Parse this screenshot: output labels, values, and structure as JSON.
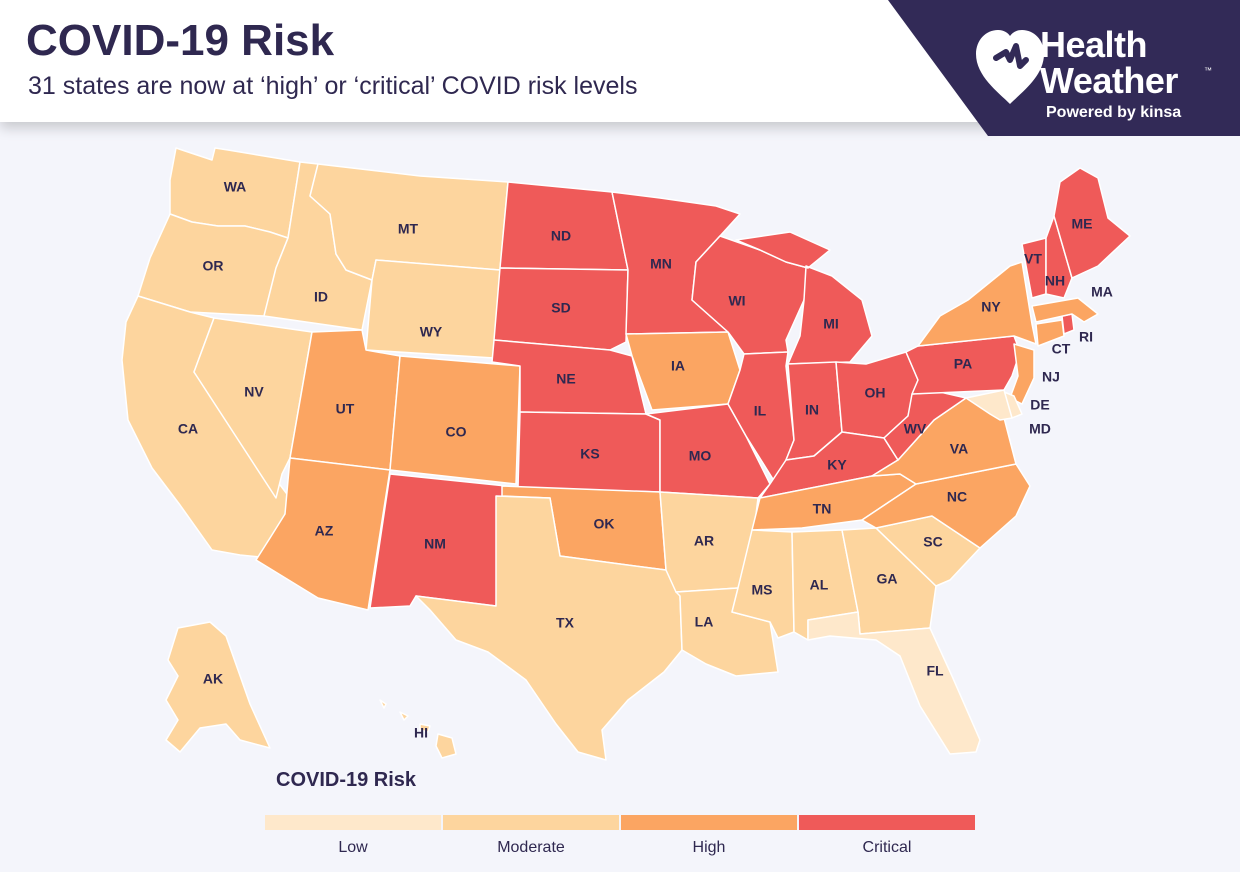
{
  "header": {
    "title": "COVID-19 Risk",
    "subtitle": "31 states are now at ‘high’ or ‘critical’ COVID risk levels"
  },
  "brand": {
    "name_line1": "Health",
    "name_line2": "Weather",
    "trademark": "™",
    "powered_by": "Powered by kinsa",
    "background_color": "#322a57",
    "icon": "heart-pin-icon"
  },
  "colors": {
    "Low": "#fee8cb",
    "Moderate": "#fdd59e",
    "High": "#fba562",
    "Critical": "#ef5a59"
  },
  "legend": {
    "title": "COVID-19 Risk",
    "levels": [
      "Low",
      "Moderate",
      "High",
      "Critical"
    ]
  },
  "states": [
    {
      "abbr": "WA",
      "risk": "Moderate"
    },
    {
      "abbr": "OR",
      "risk": "Moderate"
    },
    {
      "abbr": "CA",
      "risk": "Moderate"
    },
    {
      "abbr": "ID",
      "risk": "Moderate"
    },
    {
      "abbr": "NV",
      "risk": "Moderate"
    },
    {
      "abbr": "MT",
      "risk": "Moderate"
    },
    {
      "abbr": "WY",
      "risk": "Moderate"
    },
    {
      "abbr": "UT",
      "risk": "High"
    },
    {
      "abbr": "AZ",
      "risk": "High"
    },
    {
      "abbr": "CO",
      "risk": "High"
    },
    {
      "abbr": "NM",
      "risk": "Critical"
    },
    {
      "abbr": "ND",
      "risk": "Critical"
    },
    {
      "abbr": "SD",
      "risk": "Critical"
    },
    {
      "abbr": "NE",
      "risk": "Critical"
    },
    {
      "abbr": "KS",
      "risk": "Critical"
    },
    {
      "abbr": "OK",
      "risk": "High"
    },
    {
      "abbr": "TX",
      "risk": "Moderate"
    },
    {
      "abbr": "MN",
      "risk": "Critical"
    },
    {
      "abbr": "IA",
      "risk": "High"
    },
    {
      "abbr": "MO",
      "risk": "Critical"
    },
    {
      "abbr": "AR",
      "risk": "Moderate"
    },
    {
      "abbr": "LA",
      "risk": "Moderate"
    },
    {
      "abbr": "WI",
      "risk": "Critical"
    },
    {
      "abbr": "IL",
      "risk": "Critical"
    },
    {
      "abbr": "MI",
      "risk": "Critical"
    },
    {
      "abbr": "IN",
      "risk": "Critical"
    },
    {
      "abbr": "OH",
      "risk": "Critical"
    },
    {
      "abbr": "KY",
      "risk": "Critical"
    },
    {
      "abbr": "TN",
      "risk": "High"
    },
    {
      "abbr": "MS",
      "risk": "Moderate"
    },
    {
      "abbr": "AL",
      "risk": "Moderate"
    },
    {
      "abbr": "GA",
      "risk": "Moderate"
    },
    {
      "abbr": "FL",
      "risk": "Low"
    },
    {
      "abbr": "SC",
      "risk": "Moderate"
    },
    {
      "abbr": "NC",
      "risk": "High"
    },
    {
      "abbr": "VA",
      "risk": "High"
    },
    {
      "abbr": "WV",
      "risk": "Critical"
    },
    {
      "abbr": "PA",
      "risk": "Critical"
    },
    {
      "abbr": "NY",
      "risk": "High"
    },
    {
      "abbr": "VT",
      "risk": "Critical"
    },
    {
      "abbr": "NH",
      "risk": "Critical"
    },
    {
      "abbr": "ME",
      "risk": "Critical"
    },
    {
      "abbr": "MA",
      "risk": "High"
    },
    {
      "abbr": "RI",
      "risk": "Critical"
    },
    {
      "abbr": "CT",
      "risk": "High"
    },
    {
      "abbr": "NJ",
      "risk": "High"
    },
    {
      "abbr": "DE",
      "risk": "Low"
    },
    {
      "abbr": "MD",
      "risk": "Low"
    },
    {
      "abbr": "AK",
      "risk": "Moderate"
    },
    {
      "abbr": "HI",
      "risk": "Moderate"
    }
  ]
}
